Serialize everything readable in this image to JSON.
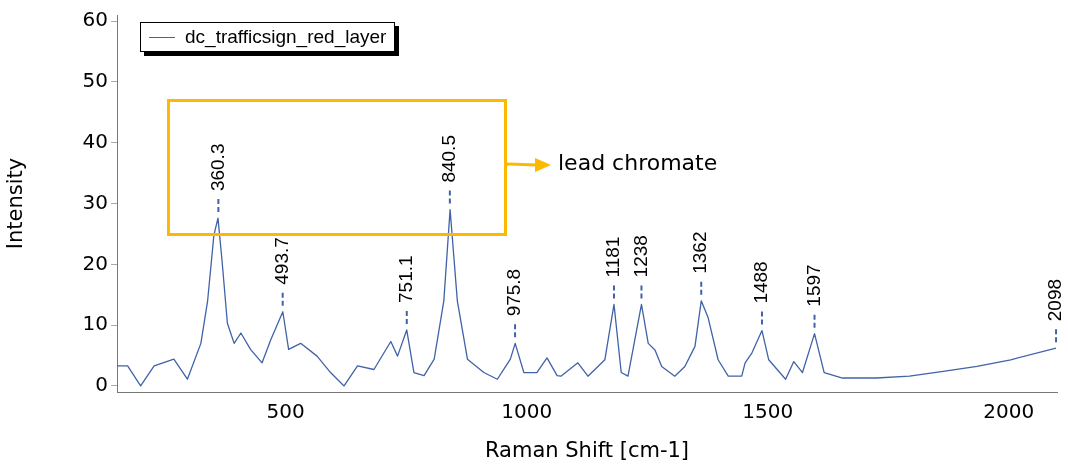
{
  "chart_data": {
    "type": "line",
    "xlabel": "Raman Shift [cm-1]",
    "ylabel": "Intensity",
    "xlim": [
      150,
      2100
    ],
    "ylim": [
      -1,
      61
    ],
    "xticks": [
      500,
      1000,
      1500,
      2000
    ],
    "yticks": [
      0,
      10,
      20,
      30,
      40,
      50,
      60
    ],
    "legend": "top left",
    "marker": "none",
    "series": [
      {
        "name": "dc_trafficsign_red_layer",
        "color": "#4063a8",
        "x": [
          151,
          172,
          199,
          227,
          268,
          296,
          324,
          338,
          351,
          359.5,
          368,
          379,
          393,
          407,
          427,
          451,
          469,
          494,
          506,
          531,
          565,
          593,
          621,
          649,
          683,
          718,
          732,
          751,
          766,
          787,
          808,
          828,
          841,
          856,
          877,
          911,
          939,
          966,
          976,
          994,
          1021,
          1042,
          1063,
          1071,
          1106,
          1127,
          1162,
          1181,
          1196,
          1210,
          1238,
          1252,
          1266,
          1280,
          1307,
          1328,
          1349,
          1362,
          1376,
          1397,
          1418,
          1446,
          1453,
          1467,
          1488,
          1502,
          1537,
          1554,
          1572,
          1597,
          1617,
          1655,
          1725,
          1794,
          1864,
          1934,
          2004,
          2098
        ],
        "values": [
          3.3,
          3.3,
          0,
          3.3,
          4.4,
          1.1,
          7,
          14,
          24.8,
          27.6,
          20.5,
          10.3,
          7,
          8.7,
          6,
          3.8,
          7.6,
          12.2,
          6,
          7,
          4.9,
          2.2,
          0,
          3.3,
          2.7,
          7.3,
          4.9,
          9.2,
          2.2,
          1.7,
          4.4,
          14,
          29,
          14,
          4.4,
          2.2,
          1.1,
          4.4,
          7,
          2.2,
          2.2,
          4.6,
          1.7,
          1.6,
          3.8,
          1.6,
          4.3,
          13.4,
          2.2,
          1.6,
          13.4,
          7,
          5.9,
          3.2,
          1.6,
          3.2,
          6.5,
          14,
          11.3,
          4.3,
          1.6,
          1.6,
          3.8,
          5.4,
          9.1,
          4.3,
          1.1,
          4,
          2.2,
          8.6,
          2.2,
          1.3,
          1.3,
          1.6,
          2.4,
          3.2,
          4.3,
          6.2
        ]
      }
    ],
    "annotations": [
      {
        "text": "360.3",
        "x": 360.3,
        "y": 27.6
      },
      {
        "text": "493.7",
        "x": 493.7,
        "y": 12.2
      },
      {
        "text": "751.1",
        "x": 751.1,
        "y": 9.2
      },
      {
        "text": "840.5",
        "x": 840.5,
        "y": 29
      },
      {
        "text": "975.8",
        "x": 975.8,
        "y": 7
      },
      {
        "text": "1181",
        "x": 1181,
        "y": 13.4
      },
      {
        "text": "1238",
        "x": 1238,
        "y": 13.4
      },
      {
        "text": "1362",
        "x": 1362,
        "y": 14
      },
      {
        "text": "1488",
        "x": 1488,
        "y": 9.1
      },
      {
        "text": "1597",
        "x": 1597,
        "y": 8.6
      },
      {
        "text": "2098",
        "x": 2098,
        "y": 6.2
      },
      "lead chromate"
    ]
  }
}
